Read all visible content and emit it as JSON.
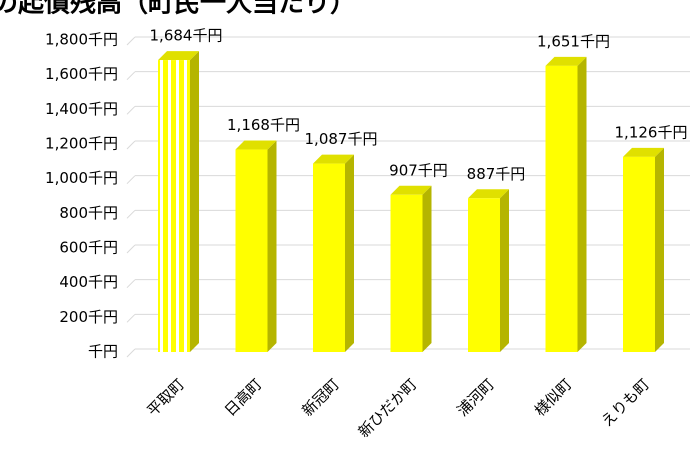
{
  "chart_data": {
    "type": "bar3d",
    "title": "の起債残高（町民一人当たり）",
    "categories": [
      "平取町",
      "日高町",
      "新冠町",
      "新ひだか町",
      "浦河町",
      "様似町",
      "えりも町"
    ],
    "values": [
      1684,
      1168,
      1087,
      907,
      887,
      1651,
      1126
    ],
    "value_labels": [
      "1,684千円",
      "1,168千円",
      "1,087千円",
      "907千円",
      "887千円",
      "1,651千円",
      "1,126千円"
    ],
    "color": "#ffff00",
    "ylim": [
      0,
      1800
    ],
    "yticks": [
      {
        "value": 0,
        "label": "千円"
      },
      {
        "value": 200,
        "label": "200千円"
      },
      {
        "value": 400,
        "label": "400千円"
      },
      {
        "value": 600,
        "label": "600千円"
      },
      {
        "value": 800,
        "label": "800千円"
      },
      {
        "value": 1000,
        "label": "1,000千円"
      },
      {
        "value": 1200,
        "label": "1,200千円"
      },
      {
        "value": 1400,
        "label": "1,400千円"
      },
      {
        "value": 1600,
        "label": "1,600千円"
      },
      {
        "value": 1800,
        "label": "1,800千円"
      }
    ],
    "grid": true
  }
}
